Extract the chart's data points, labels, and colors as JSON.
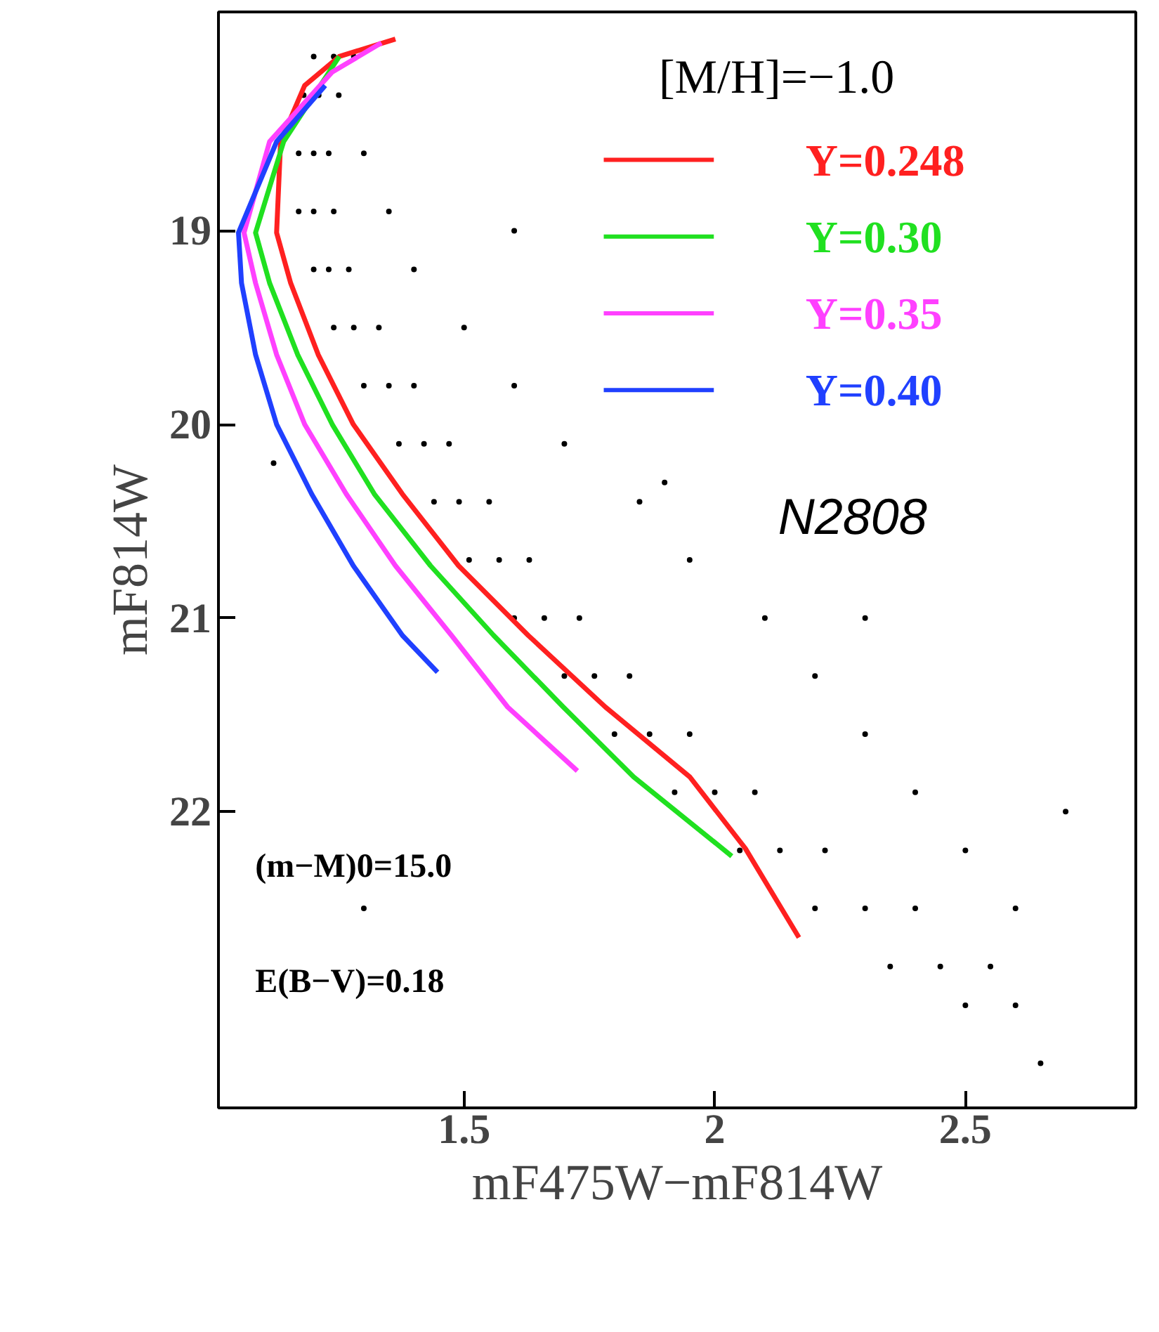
{
  "chart_data": {
    "type": "scatter",
    "xlabel": "mF475W−mF814W",
    "ylabel": "mF814W",
    "legend_title": "[M/H]=−1.0",
    "xlim": [
      1.01,
      2.84
    ],
    "ylim": [
      23.53,
      17.87
    ],
    "xticks": [
      1.5,
      2,
      2.5
    ],
    "yticks": [
      19,
      20,
      21,
      22
    ],
    "grid": false,
    "legend": "top right",
    "annotations": [
      "N2808",
      "(m−M)0=15.0",
      "E(B−V)=0.18"
    ],
    "series": [
      {
        "marker": "circle",
        "color": "#000000",
        "x": [
          1.2,
          1.24,
          1.28,
          1.18,
          1.21,
          1.25,
          1.17,
          1.2,
          1.23,
          1.3,
          1.17,
          1.2,
          1.24,
          1.35,
          1.2,
          1.23,
          1.27,
          1.4,
          1.24,
          1.28,
          1.33,
          1.5,
          1.3,
          1.35,
          1.4,
          1.6,
          1.37,
          1.42,
          1.47,
          1.7,
          1.44,
          1.49,
          1.55,
          1.85,
          1.51,
          1.57,
          1.63,
          1.95,
          1.6,
          1.66,
          1.73,
          2.1,
          1.7,
          1.76,
          1.83,
          2.2,
          1.8,
          1.87,
          1.95,
          2.3,
          1.92,
          2.0,
          2.08,
          2.4,
          2.05,
          2.13,
          2.22,
          2.5,
          2.2,
          2.3,
          2.4,
          2.6,
          2.35,
          2.45,
          2.55,
          2.5,
          2.6,
          1.6,
          1.9,
          2.3,
          2.7,
          1.3,
          2.65,
          1.12
        ],
        "values": [
          18.1,
          18.1,
          18.1,
          18.3,
          18.3,
          18.3,
          18.6,
          18.6,
          18.6,
          18.6,
          18.9,
          18.9,
          18.9,
          18.9,
          19.2,
          19.2,
          19.2,
          19.2,
          19.5,
          19.5,
          19.5,
          19.5,
          19.8,
          19.8,
          19.8,
          19.8,
          20.1,
          20.1,
          20.1,
          20.1,
          20.4,
          20.4,
          20.4,
          20.4,
          20.7,
          20.7,
          20.7,
          20.7,
          21.0,
          21.0,
          21.0,
          21.0,
          21.3,
          21.3,
          21.3,
          21.3,
          21.6,
          21.6,
          21.6,
          21.6,
          21.9,
          21.9,
          21.9,
          21.9,
          22.2,
          22.2,
          22.2,
          22.2,
          22.5,
          22.5,
          22.5,
          22.5,
          22.8,
          22.8,
          22.8,
          23.0,
          23.0,
          19.0,
          20.3,
          21.0,
          22.0,
          22.5,
          23.3,
          20.2
        ]
      },
      {
        "type": "line",
        "name": "Y=0.248",
        "color": "#ff2020",
        "x": [
          1.363,
          1.251,
          1.182,
          1.134,
          1.126,
          1.154,
          1.209,
          1.279,
          1.377,
          1.489,
          1.628,
          1.782,
          1.95,
          2.061,
          2.168
        ],
        "values": [
          18.01,
          18.1,
          18.25,
          18.54,
          19.01,
          19.27,
          19.64,
          20.0,
          20.36,
          20.73,
          21.09,
          21.46,
          21.82,
          22.19,
          22.65
        ]
      },
      {
        "type": "line",
        "name": "Y=0.30",
        "color": "#20e020",
        "x": [
          1.251,
          1.14,
          1.084,
          1.112,
          1.168,
          1.237,
          1.321,
          1.433,
          1.559,
          1.698,
          1.838,
          2.034
        ],
        "values": [
          18.1,
          18.54,
          19.01,
          19.27,
          19.64,
          20.0,
          20.36,
          20.73,
          21.09,
          21.46,
          21.82,
          22.23
        ]
      },
      {
        "type": "line",
        "name": "Y=0.35",
        "color": "#ff40ff",
        "x": [
          1.335,
          1.237,
          1.112,
          1.061,
          1.084,
          1.126,
          1.182,
          1.265,
          1.363,
          1.475,
          1.587,
          1.726
        ],
        "values": [
          18.03,
          18.18,
          18.54,
          19.01,
          19.27,
          19.64,
          20.0,
          20.36,
          20.73,
          21.09,
          21.46,
          21.79
        ]
      },
      {
        "type": "line",
        "name": "Y=0.40",
        "color": "#2040ff",
        "x": [
          1.223,
          1.126,
          1.05,
          1.056,
          1.084,
          1.126,
          1.196,
          1.279,
          1.377,
          1.447
        ],
        "values": [
          18.25,
          18.54,
          19.01,
          19.27,
          19.64,
          20.0,
          20.36,
          20.73,
          21.09,
          21.28
        ]
      }
    ]
  }
}
